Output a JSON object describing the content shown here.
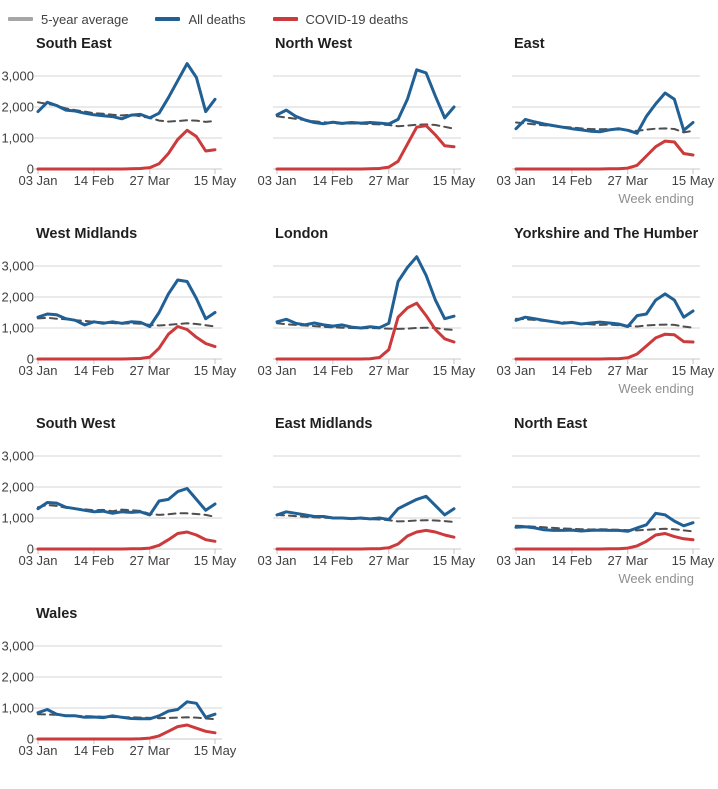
{
  "legend": {
    "items": [
      {
        "label": "5-year average",
        "swatch_color": "#a6a6a6"
      },
      {
        "label": "All deaths",
        "swatch_color": "#206095"
      },
      {
        "label": "COVID-19 deaths",
        "swatch_color": "#cc3a3c"
      }
    ]
  },
  "axis": {
    "x_axis_label": "Week ending",
    "x_ticks": [
      {
        "label": "03 Jan",
        "index": 0
      },
      {
        "label": "14 Feb",
        "index": 6
      },
      {
        "label": "27 Mar",
        "index": 12
      },
      {
        "label": "15 May",
        "index": 19
      }
    ],
    "y_ticks": [
      {
        "label": "0",
        "value": 0
      },
      {
        "label": "1,000",
        "value": 1000
      },
      {
        "label": "2,000",
        "value": 2000
      },
      {
        "label": "3,000",
        "value": 3000
      }
    ],
    "n_points": 20,
    "ylim": [
      0,
      3500
    ],
    "grid": "horizontal-only"
  },
  "series_styles": {
    "avg": {
      "name": "5-year average",
      "color": "#4f4f4f",
      "width": 2,
      "dash": "7 5"
    },
    "all": {
      "name": "All deaths",
      "color": "#206095",
      "width": 3,
      "dash": ""
    },
    "covid": {
      "name": "COVID-19 deaths",
      "color": "#cc3a3c",
      "width": 3,
      "dash": ""
    }
  },
  "chart_data": [
    {
      "type": "line",
      "title": "South East",
      "show_y_axis": true,
      "show_week_ending": false,
      "series": {
        "avg": [
          2150,
          2100,
          2050,
          1950,
          1900,
          1850,
          1800,
          1780,
          1750,
          1730,
          1750,
          1700,
          1650,
          1560,
          1530,
          1550,
          1570,
          1560,
          1520,
          1550
        ],
        "all": [
          1850,
          2150,
          2050,
          1900,
          1870,
          1800,
          1750,
          1720,
          1690,
          1620,
          1740,
          1760,
          1650,
          1800,
          2300,
          2850,
          3400,
          2950,
          1850,
          2250
        ],
        "covid": [
          0,
          0,
          0,
          0,
          0,
          0,
          0,
          0,
          0,
          0,
          5,
          15,
          45,
          170,
          500,
          950,
          1250,
          1050,
          580,
          620
        ]
      }
    },
    {
      "type": "line",
      "title": "North West",
      "show_y_axis": false,
      "show_week_ending": false,
      "series": {
        "avg": [
          1700,
          1660,
          1620,
          1580,
          1540,
          1510,
          1480,
          1460,
          1470,
          1460,
          1450,
          1440,
          1420,
          1380,
          1400,
          1430,
          1440,
          1420,
          1360,
          1300
        ],
        "all": [
          1750,
          1900,
          1700,
          1580,
          1500,
          1460,
          1510,
          1470,
          1500,
          1480,
          1500,
          1480,
          1450,
          1600,
          2250,
          3200,
          3100,
          2350,
          1650,
          2000
        ],
        "covid": [
          0,
          0,
          0,
          0,
          0,
          0,
          0,
          0,
          0,
          0,
          5,
          15,
          60,
          250,
          800,
          1350,
          1400,
          1100,
          750,
          720
        ]
      }
    },
    {
      "type": "line",
      "title": "East",
      "show_y_axis": false,
      "show_week_ending": true,
      "series": {
        "avg": [
          1500,
          1470,
          1440,
          1410,
          1390,
          1360,
          1340,
          1310,
          1290,
          1280,
          1290,
          1270,
          1250,
          1230,
          1270,
          1300,
          1310,
          1290,
          1180,
          1230
        ],
        "all": [
          1300,
          1600,
          1520,
          1450,
          1400,
          1350,
          1300,
          1260,
          1220,
          1200,
          1260,
          1300,
          1250,
          1150,
          1700,
          2100,
          2450,
          2250,
          1250,
          1500
        ],
        "covid": [
          0,
          0,
          0,
          0,
          0,
          0,
          0,
          0,
          0,
          0,
          5,
          10,
          30,
          120,
          420,
          720,
          900,
          870,
          500,
          450
        ]
      }
    },
    {
      "type": "line",
      "title": "West Midlands",
      "show_y_axis": true,
      "show_week_ending": false,
      "series": {
        "avg": [
          1310,
          1330,
          1300,
          1280,
          1250,
          1230,
          1200,
          1180,
          1160,
          1140,
          1150,
          1140,
          1100,
          1080,
          1100,
          1130,
          1150,
          1130,
          1090,
          1050
        ],
        "all": [
          1350,
          1450,
          1430,
          1300,
          1250,
          1100,
          1200,
          1150,
          1200,
          1150,
          1200,
          1180,
          1050,
          1500,
          2100,
          2550,
          2500,
          1950,
          1300,
          1500
        ],
        "covid": [
          0,
          0,
          0,
          0,
          0,
          0,
          0,
          0,
          0,
          0,
          5,
          15,
          60,
          350,
          800,
          1050,
          950,
          700,
          500,
          400
        ]
      }
    },
    {
      "type": "line",
      "title": "London",
      "show_y_axis": false,
      "show_week_ending": false,
      "series": {
        "avg": [
          1150,
          1120,
          1100,
          1080,
          1060,
          1040,
          1020,
          1010,
          1000,
          990,
          1000,
          990,
          980,
          970,
          980,
          1000,
          1010,
          1000,
          960,
          940
        ],
        "all": [
          1200,
          1280,
          1150,
          1100,
          1160,
          1100,
          1060,
          1100,
          1030,
          1000,
          1040,
          1010,
          1150,
          2500,
          2950,
          3300,
          2700,
          1900,
          1300,
          1380
        ],
        "covid": [
          0,
          0,
          0,
          0,
          0,
          0,
          0,
          0,
          0,
          0,
          10,
          50,
          300,
          1350,
          1650,
          1800,
          1400,
          950,
          650,
          550
        ]
      }
    },
    {
      "type": "line",
      "title": "Yorkshire and The Humber",
      "show_y_axis": false,
      "show_week_ending": true,
      "series": {
        "avg": [
          1300,
          1280,
          1260,
          1230,
          1210,
          1190,
          1160,
          1140,
          1120,
          1100,
          1110,
          1090,
          1070,
          1050,
          1080,
          1100,
          1110,
          1100,
          1050,
          1010
        ],
        "all": [
          1250,
          1350,
          1300,
          1250,
          1200,
          1150,
          1180,
          1130,
          1160,
          1190,
          1160,
          1130,
          1050,
          1400,
          1450,
          1900,
          2100,
          1900,
          1350,
          1550
        ],
        "covid": [
          0,
          0,
          0,
          0,
          0,
          0,
          0,
          0,
          0,
          0,
          5,
          10,
          40,
          160,
          420,
          680,
          800,
          780,
          560,
          550
        ]
      }
    },
    {
      "type": "line",
      "title": "South West",
      "show_y_axis": true,
      "show_week_ending": false,
      "series": {
        "avg": [
          1350,
          1420,
          1390,
          1330,
          1300,
          1280,
          1250,
          1260,
          1220,
          1270,
          1250,
          1230,
          1130,
          1100,
          1120,
          1150,
          1150,
          1130,
          1100,
          1040
        ],
        "all": [
          1300,
          1500,
          1480,
          1350,
          1300,
          1250,
          1200,
          1220,
          1150,
          1200,
          1180,
          1200,
          1100,
          1550,
          1600,
          1850,
          1950,
          1600,
          1250,
          1450
        ],
        "covid": [
          0,
          0,
          0,
          0,
          0,
          0,
          0,
          0,
          0,
          0,
          5,
          10,
          30,
          120,
          300,
          500,
          550,
          450,
          300,
          250
        ]
      }
    },
    {
      "type": "line",
      "title": "East Midlands",
      "show_y_axis": false,
      "show_week_ending": false,
      "series": {
        "avg": [
          1100,
          1080,
          1060,
          1040,
          1020,
          1010,
          1000,
          990,
          970,
          980,
          960,
          950,
          930,
          890,
          900,
          920,
          930,
          920,
          900,
          870
        ],
        "all": [
          1100,
          1200,
          1150,
          1100,
          1050,
          1050,
          1000,
          1000,
          980,
          1000,
          970,
          1000,
          950,
          1300,
          1450,
          1600,
          1700,
          1400,
          1100,
          1300
        ],
        "covid": [
          0,
          0,
          0,
          0,
          0,
          0,
          0,
          0,
          0,
          0,
          5,
          10,
          40,
          160,
          420,
          550,
          600,
          550,
          450,
          380
        ]
      }
    },
    {
      "type": "line",
      "title": "North East",
      "show_y_axis": false,
      "show_week_ending": true,
      "series": {
        "avg": [
          750,
          740,
          720,
          700,
          680,
          660,
          650,
          640,
          630,
          640,
          630,
          620,
          610,
          600,
          620,
          640,
          650,
          640,
          600,
          570
        ],
        "all": [
          700,
          720,
          680,
          620,
          600,
          600,
          610,
          580,
          600,
          610,
          600,
          600,
          570,
          680,
          780,
          1150,
          1100,
          900,
          750,
          850
        ],
        "covid": [
          0,
          0,
          0,
          0,
          0,
          0,
          0,
          0,
          0,
          0,
          5,
          10,
          30,
          100,
          250,
          450,
          500,
          400,
          330,
          300
        ]
      }
    },
    {
      "type": "line",
      "title": "Wales",
      "show_y_axis": true,
      "show_week_ending": false,
      "series": {
        "avg": [
          800,
          790,
          780,
          760,
          750,
          740,
          730,
          720,
          710,
          700,
          700,
          690,
          680,
          670,
          680,
          690,
          700,
          690,
          660,
          640
        ],
        "all": [
          850,
          950,
          800,
          750,
          750,
          700,
          710,
          690,
          750,
          700,
          660,
          650,
          650,
          750,
          900,
          950,
          1200,
          1150,
          700,
          800
        ],
        "covid": [
          0,
          0,
          0,
          0,
          0,
          0,
          0,
          0,
          0,
          0,
          0,
          10,
          30,
          100,
          250,
          400,
          450,
          350,
          250,
          200
        ]
      }
    }
  ]
}
